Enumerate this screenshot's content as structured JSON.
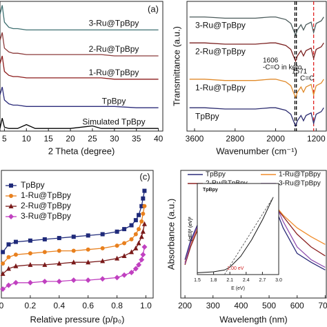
{
  "chart_data": [
    {
      "type": "line",
      "panel_label": "(a)",
      "xlabel": "2 Theta (degree)",
      "xlim": [
        4,
        41
      ],
      "ylim": [
        0,
        100
      ],
      "xticks": [
        5,
        10,
        15,
        20,
        25,
        30,
        35,
        40
      ],
      "x": [
        4,
        4.5,
        5,
        6,
        7,
        8,
        10,
        12,
        15,
        20,
        25,
        27,
        30,
        35,
        40
      ],
      "series": [
        {
          "name": "3-Ru@TpBpy",
          "color": "#3d6f70",
          "values": [
            90,
            97,
            84,
            80,
            79,
            79,
            78,
            78,
            78,
            78,
            78,
            78,
            78,
            78,
            78
          ]
        },
        {
          "name": "2-Ru@TpBpy",
          "color": "#8b3a3a",
          "values": [
            70,
            76,
            64,
            61,
            60,
            60,
            59,
            59,
            59,
            59,
            59,
            59,
            58,
            58,
            58
          ]
        },
        {
          "name": "1-Ru@TpBpy",
          "color": "#8b1a1a",
          "values": [
            52,
            58,
            46,
            43,
            42,
            42,
            41,
            41,
            41,
            41,
            41,
            41,
            40,
            40,
            40
          ]
        },
        {
          "name": "TpBpy",
          "color": "#2b2b7a",
          "values": [
            28,
            34,
            24,
            21,
            20,
            20,
            19,
            19,
            19,
            19,
            19,
            19,
            19,
            18,
            18
          ]
        },
        {
          "name": "Simulated TpBpy",
          "color": "#000000",
          "values": [
            2,
            10,
            3,
            2,
            2,
            2,
            5,
            2,
            2,
            2,
            4,
            2,
            2,
            2,
            2
          ]
        }
      ]
    },
    {
      "type": "line",
      "xlabel": "Wavenumber (cm⁻¹)",
      "ylabel": "Transmittance (a.u.)",
      "xlim": [
        3750,
        1000
      ],
      "ylim": [
        0,
        100
      ],
      "xticks": [
        3600,
        2800,
        2000,
        1200
      ],
      "x": [
        3700,
        3400,
        3000,
        2800,
        2400,
        2100,
        2000,
        1800,
        1700,
        1650,
        1606,
        1571,
        1500,
        1450,
        1400,
        1300,
        1250,
        1200,
        1100,
        1050
      ],
      "vlines": [
        {
          "x": 1620,
          "color": "#000000"
        },
        {
          "x": 1590,
          "color": "#000000"
        },
        {
          "x": 1250,
          "color": "#e02020"
        }
      ],
      "annotations": [
        "1606",
        "-C=O in keto",
        "1571",
        "C=C"
      ],
      "series": [
        {
          "name": "3-Ru@TpBpy",
          "color": "#4a5a5a",
          "values": [
            88,
            88,
            87,
            87,
            87,
            88,
            88,
            86,
            83,
            78,
            74,
            78,
            82,
            78,
            82,
            84,
            76,
            83,
            85,
            88
          ]
        },
        {
          "name": "2-Ru@TpBpy",
          "color": "#7a1f1f",
          "values": [
            68,
            68,
            67,
            67,
            67,
            68,
            68,
            66,
            63,
            58,
            54,
            58,
            62,
            58,
            62,
            64,
            56,
            63,
            65,
            68
          ]
        },
        {
          "name": "1-Ru@TpBpy",
          "color": "#e08a2a",
          "values": [
            40,
            40,
            39,
            39,
            39,
            40,
            40,
            38,
            35,
            30,
            26,
            30,
            34,
            30,
            34,
            36,
            28,
            35,
            37,
            40
          ]
        },
        {
          "name": "TpBpy",
          "color": "#2a2a6e",
          "values": [
            18,
            18,
            17,
            17,
            17,
            18,
            18,
            16,
            13,
            8,
            4,
            8,
            12,
            8,
            12,
            14,
            6,
            13,
            15,
            18
          ]
        }
      ]
    },
    {
      "type": "line",
      "panel_label": "(c)",
      "xlabel": "Relative pressure (p/p₀)",
      "xlim": [
        0,
        1.05
      ],
      "ylim": [
        0,
        100
      ],
      "xticks": [
        0,
        0.2,
        0.4,
        0.6,
        0.8,
        {
          "value": 1,
          "label": "1.0"
        }
      ],
      "x": [
        0.01,
        0.05,
        0.1,
        0.2,
        0.3,
        0.4,
        0.5,
        0.6,
        0.7,
        0.8,
        0.85,
        0.9,
        0.93,
        0.95,
        0.97,
        0.98,
        0.99
      ],
      "series": [
        {
          "name": "TpBpy",
          "color": "#1f2a7a",
          "marker": "square",
          "values": [
            36,
            42,
            44,
            45,
            46,
            47,
            48,
            49,
            50,
            52,
            54,
            57,
            61,
            65,
            72,
            78,
            84
          ]
        },
        {
          "name": "1-Ru@TpBpy",
          "color": "#e8801e",
          "marker": "circle",
          "values": [
            27,
            32,
            34,
            35,
            36,
            37,
            37,
            38,
            39,
            41,
            43,
            46,
            50,
            54,
            60,
            66,
            72
          ]
        },
        {
          "name": "2-Ru@TpBpy",
          "color": "#7a1a1a",
          "marker": "triangle",
          "values": [
            19,
            23,
            25,
            26,
            26,
            27,
            28,
            28,
            29,
            31,
            33,
            36,
            39,
            43,
            48,
            52,
            58
          ]
        },
        {
          "name": "3-Ru@TpBpy",
          "color": "#c040c0",
          "marker": "diamond",
          "values": [
            7,
            10,
            12,
            12,
            13,
            13,
            14,
            14,
            15,
            16,
            18,
            20,
            23,
            26,
            30,
            34,
            40
          ]
        }
      ]
    },
    {
      "type": "line",
      "xlabel": "Wavelength (nm)",
      "ylabel": "Absorbance (a.u.)",
      "xlim": [
        185,
        704
      ],
      "ylim": [
        0,
        100
      ],
      "xticks": [
        200,
        300,
        400,
        500,
        600,
        700
      ],
      "x": [
        200,
        220,
        250,
        300,
        350,
        400,
        450,
        500,
        520,
        550,
        600,
        650,
        700
      ],
      "series": [
        {
          "name": "TpBpy",
          "color": "#2b2b7a",
          "values": [
            30,
            45,
            60,
            68,
            72,
            75,
            76,
            74,
            72,
            55,
            35,
            28,
            22
          ]
        },
        {
          "name": "1-Ru@TpBpy",
          "color": "#f08c2a",
          "values": [
            28,
            42,
            58,
            66,
            70,
            73,
            75,
            74,
            73,
            65,
            55,
            48,
            42
          ]
        },
        {
          "name": "2-Ru@TpBpy",
          "color": "#8b2020",
          "values": [
            26,
            40,
            56,
            64,
            68,
            71,
            73,
            73,
            72,
            64,
            50,
            40,
            33
          ]
        },
        {
          "name": "3-Ru@TpBpy",
          "color": "#9050b0",
          "values": [
            27,
            43,
            59,
            67,
            72,
            76,
            78,
            77,
            75,
            60,
            40,
            30,
            24
          ]
        }
      ],
      "inset": {
        "title": "TpBpy",
        "xlabel": "E (eV)",
        "ylabel": "(αEI)² (eV)²",
        "annotation": "2.00 eV",
        "xlim": [
          1.5,
          3.0
        ],
        "ylim": [
          0,
          100
        ],
        "xticks": [
          1.5,
          1.8,
          2.1,
          2.4,
          2.7,
          {
            "value": 3,
            "label": "3.0"
          }
        ],
        "x": [
          1.5,
          1.8,
          2.0,
          2.1,
          2.3,
          2.5,
          2.7,
          2.9
        ],
        "values": [
          2,
          3,
          5,
          8,
          20,
          38,
          60,
          85
        ],
        "fit": {
          "x": [
            2.0,
            2.9
          ],
          "values": [
            0,
            85
          ]
        }
      }
    }
  ]
}
